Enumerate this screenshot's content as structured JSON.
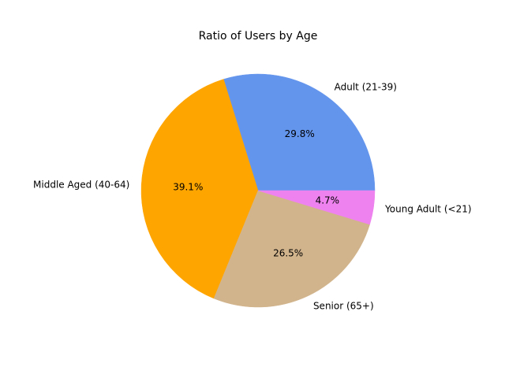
{
  "chart_data": {
    "type": "pie",
    "title": "Ratio of Users by Age",
    "slices": [
      {
        "label": "Adult (21-39)",
        "value": 29.8,
        "display": "29.8%",
        "color": "#6495ED"
      },
      {
        "label": "Middle Aged (40-64)",
        "value": 39.1,
        "display": "39.1%",
        "color": "#FFA500"
      },
      {
        "label": "Senior (65+)",
        "value": 26.5,
        "display": "26.5%",
        "color": "#D2B48C"
      },
      {
        "label": "Young Adult (<21)",
        "value": 4.7,
        "display": "4.7%",
        "color": "#EE82EE"
      }
    ],
    "start_angle": 0,
    "direction": "counterclockwise",
    "legend": "none"
  }
}
